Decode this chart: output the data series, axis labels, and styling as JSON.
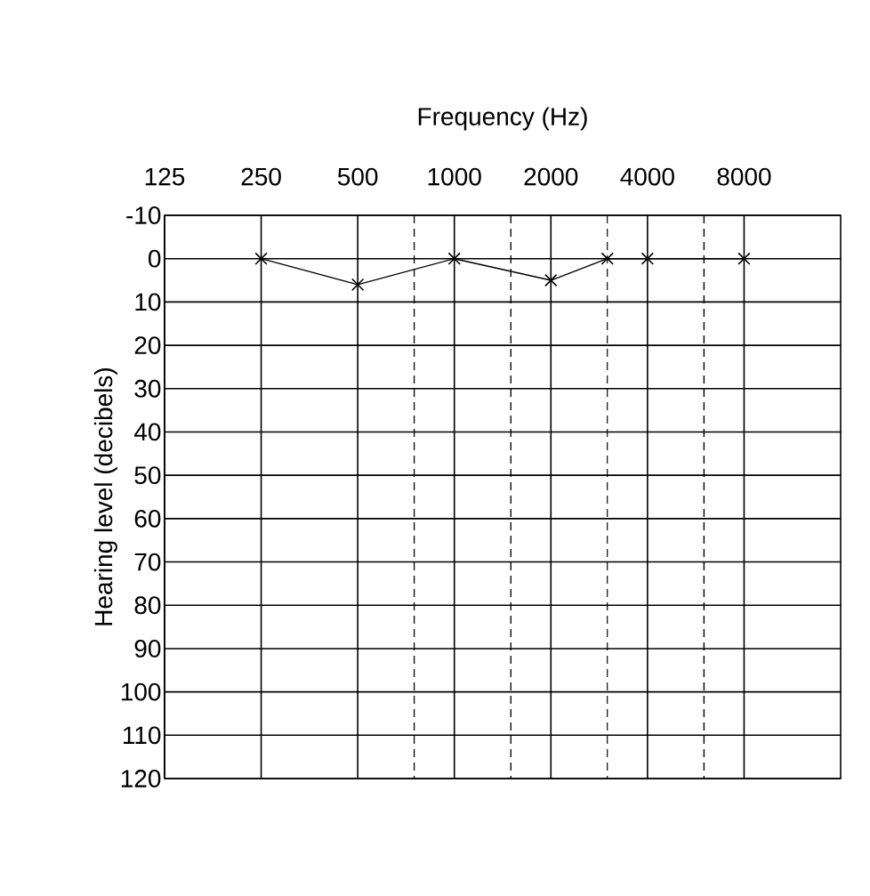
{
  "chart_data": {
    "type": "line",
    "title": "Frequency (Hz)",
    "ylabel": "Hearing level (decibels)",
    "x": [
      250,
      500,
      1000,
      2000,
      3000,
      4000,
      8000
    ],
    "series": [
      {
        "color": "#000000",
        "values": [
          0,
          6,
          0,
          5,
          0,
          0,
          0
        ]
      }
    ],
    "log": "x",
    "xlim": [
      125,
      16000
    ],
    "xticks": [
      125,
      250,
      500,
      1000,
      2000,
      4000,
      8000
    ],
    "ylim": [
      120,
      -10
    ],
    "yticks": [
      -10,
      0,
      10,
      20,
      30,
      40,
      50,
      60,
      70,
      80,
      90,
      100,
      110,
      120
    ],
    "grid": true,
    "marker": "cross",
    "line_style": "solid",
    "ref_lines": [
      {
        "axis": "x",
        "value": 750,
        "line_style": "dashed"
      },
      {
        "axis": "x",
        "value": 1500,
        "line_style": "dashed"
      },
      {
        "axis": "x",
        "value": 3000,
        "line_style": "dashed"
      },
      {
        "axis": "x",
        "value": 6000,
        "line_style": "dashed"
      }
    ]
  }
}
